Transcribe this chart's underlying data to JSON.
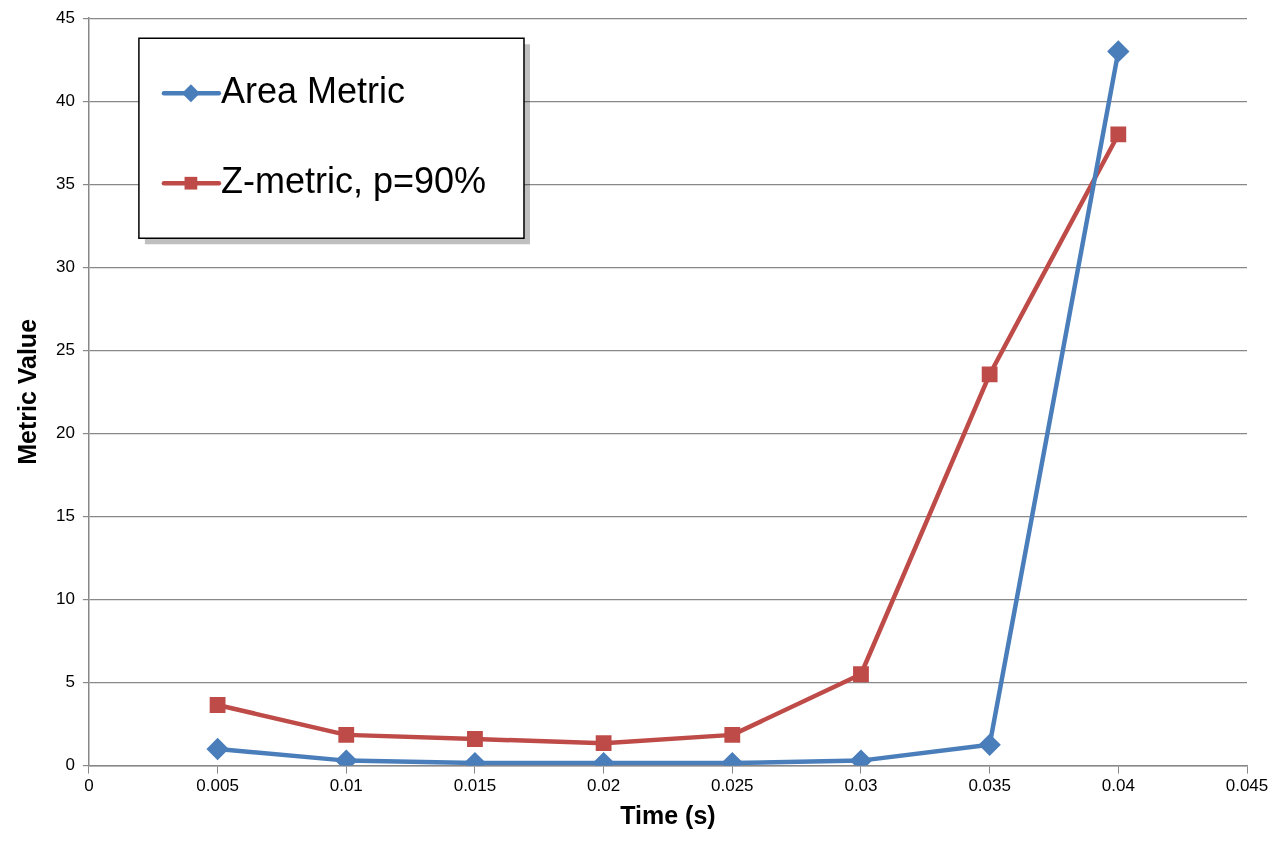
{
  "chart_data": {
    "type": "line",
    "xlabel": "Time (s)",
    "ylabel": "Metric Value",
    "x": [
      0.005,
      0.01,
      0.015,
      0.02,
      0.025,
      0.03,
      0.035,
      0.04
    ],
    "series": [
      {
        "name": "Area Metric",
        "color": "#4a7ebb",
        "marker": "diamond",
        "values": [
          1.0,
          0.3,
          0.15,
          0.15,
          0.15,
          0.3,
          1.25,
          43.0
        ]
      },
      {
        "name": "Z-metric, p=90%",
        "color": "#be4b48",
        "marker": "square",
        "values": [
          3.65,
          1.85,
          1.6,
          1.35,
          1.85,
          5.5,
          23.55,
          38.0
        ]
      }
    ],
    "xlim": [
      0,
      0.045
    ],
    "xticks": [
      0,
      0.005,
      0.01,
      0.015,
      0.02,
      0.025,
      0.03,
      0.035,
      0.04,
      0.045
    ],
    "ylim": [
      0,
      45
    ],
    "yticks": [
      0,
      5,
      10,
      15,
      20,
      25,
      30,
      35,
      40,
      45
    ],
    "grid": "y",
    "legend": "top left",
    "line_style": "solid"
  }
}
